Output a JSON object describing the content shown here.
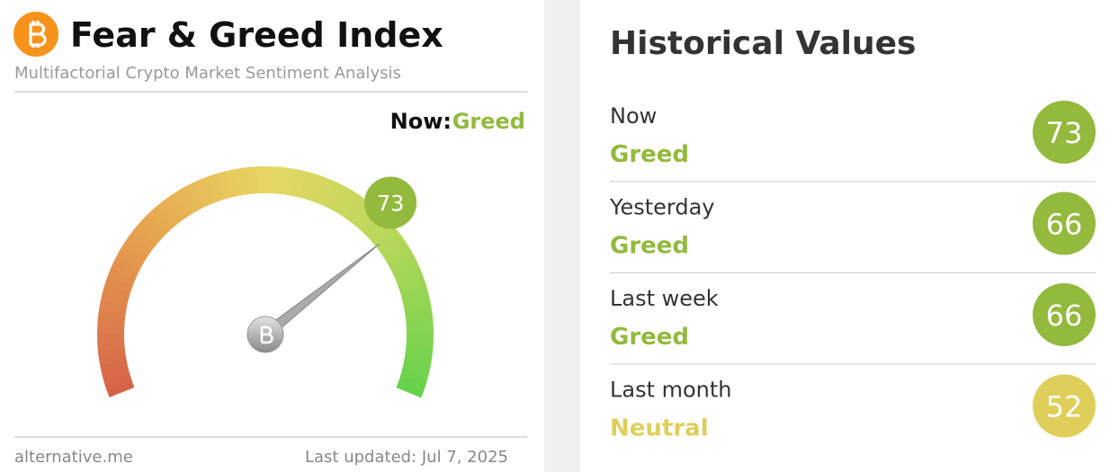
{
  "header": {
    "title": "Fear & Greed Index",
    "subtitle": "Multifactorial Crypto Market Sentiment Analysis"
  },
  "now": {
    "label": "Now:",
    "classification": "Greed",
    "color": "#93b93d"
  },
  "gauge": {
    "value": 73,
    "range": [
      0,
      100
    ],
    "color": "#93b93d"
  },
  "footer": {
    "source": "alternative.me",
    "updated": "Last updated: Jul 7, 2025"
  },
  "history": {
    "title": "Historical Values",
    "rows": [
      {
        "period": "Now",
        "classification": "Greed",
        "value": 73,
        "color": "#93b93d"
      },
      {
        "period": "Yesterday",
        "classification": "Greed",
        "value": 66,
        "color": "#93b93d"
      },
      {
        "period": "Last week",
        "classification": "Greed",
        "value": 66,
        "color": "#93b93d"
      },
      {
        "period": "Last month",
        "classification": "Neutral",
        "value": 52,
        "color": "#dfcf5a"
      }
    ]
  }
}
